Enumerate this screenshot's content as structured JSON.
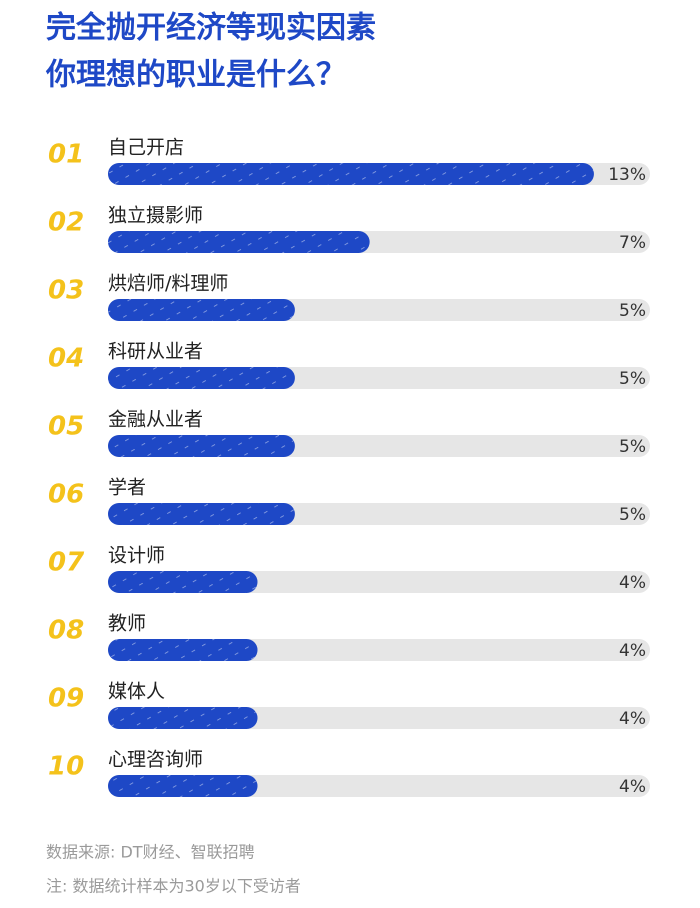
{
  "chart_data": {
    "type": "hbar",
    "title": [
      "完全抛开经济等现实因素",
      "你理想的职业是什么？"
    ],
    "ranks": [
      "01",
      "02",
      "03",
      "04",
      "05",
      "06",
      "07",
      "08",
      "09",
      "10"
    ],
    "categories": [
      "自己开店",
      "独立摄影师",
      "烘焙师/料理师",
      "科研从业者",
      "金融从业者",
      "学者",
      "设计师",
      "教师",
      "媒体人",
      "心理咨询师"
    ],
    "values": [
      13,
      7,
      5,
      5,
      5,
      5,
      4,
      4,
      4,
      4
    ],
    "value_labels": [
      "13%",
      "7%",
      "5%",
      "5%",
      "5%",
      "5%",
      "4%",
      "4%",
      "4%",
      "4%"
    ],
    "xlim": [
      0,
      14.5
    ],
    "color": "#1e48c6",
    "track_color": "#e6e6e6",
    "notes": [
      "数据来源: DT财经、智联招聘",
      "注: 数据统计样本为30岁以下受访者"
    ]
  }
}
